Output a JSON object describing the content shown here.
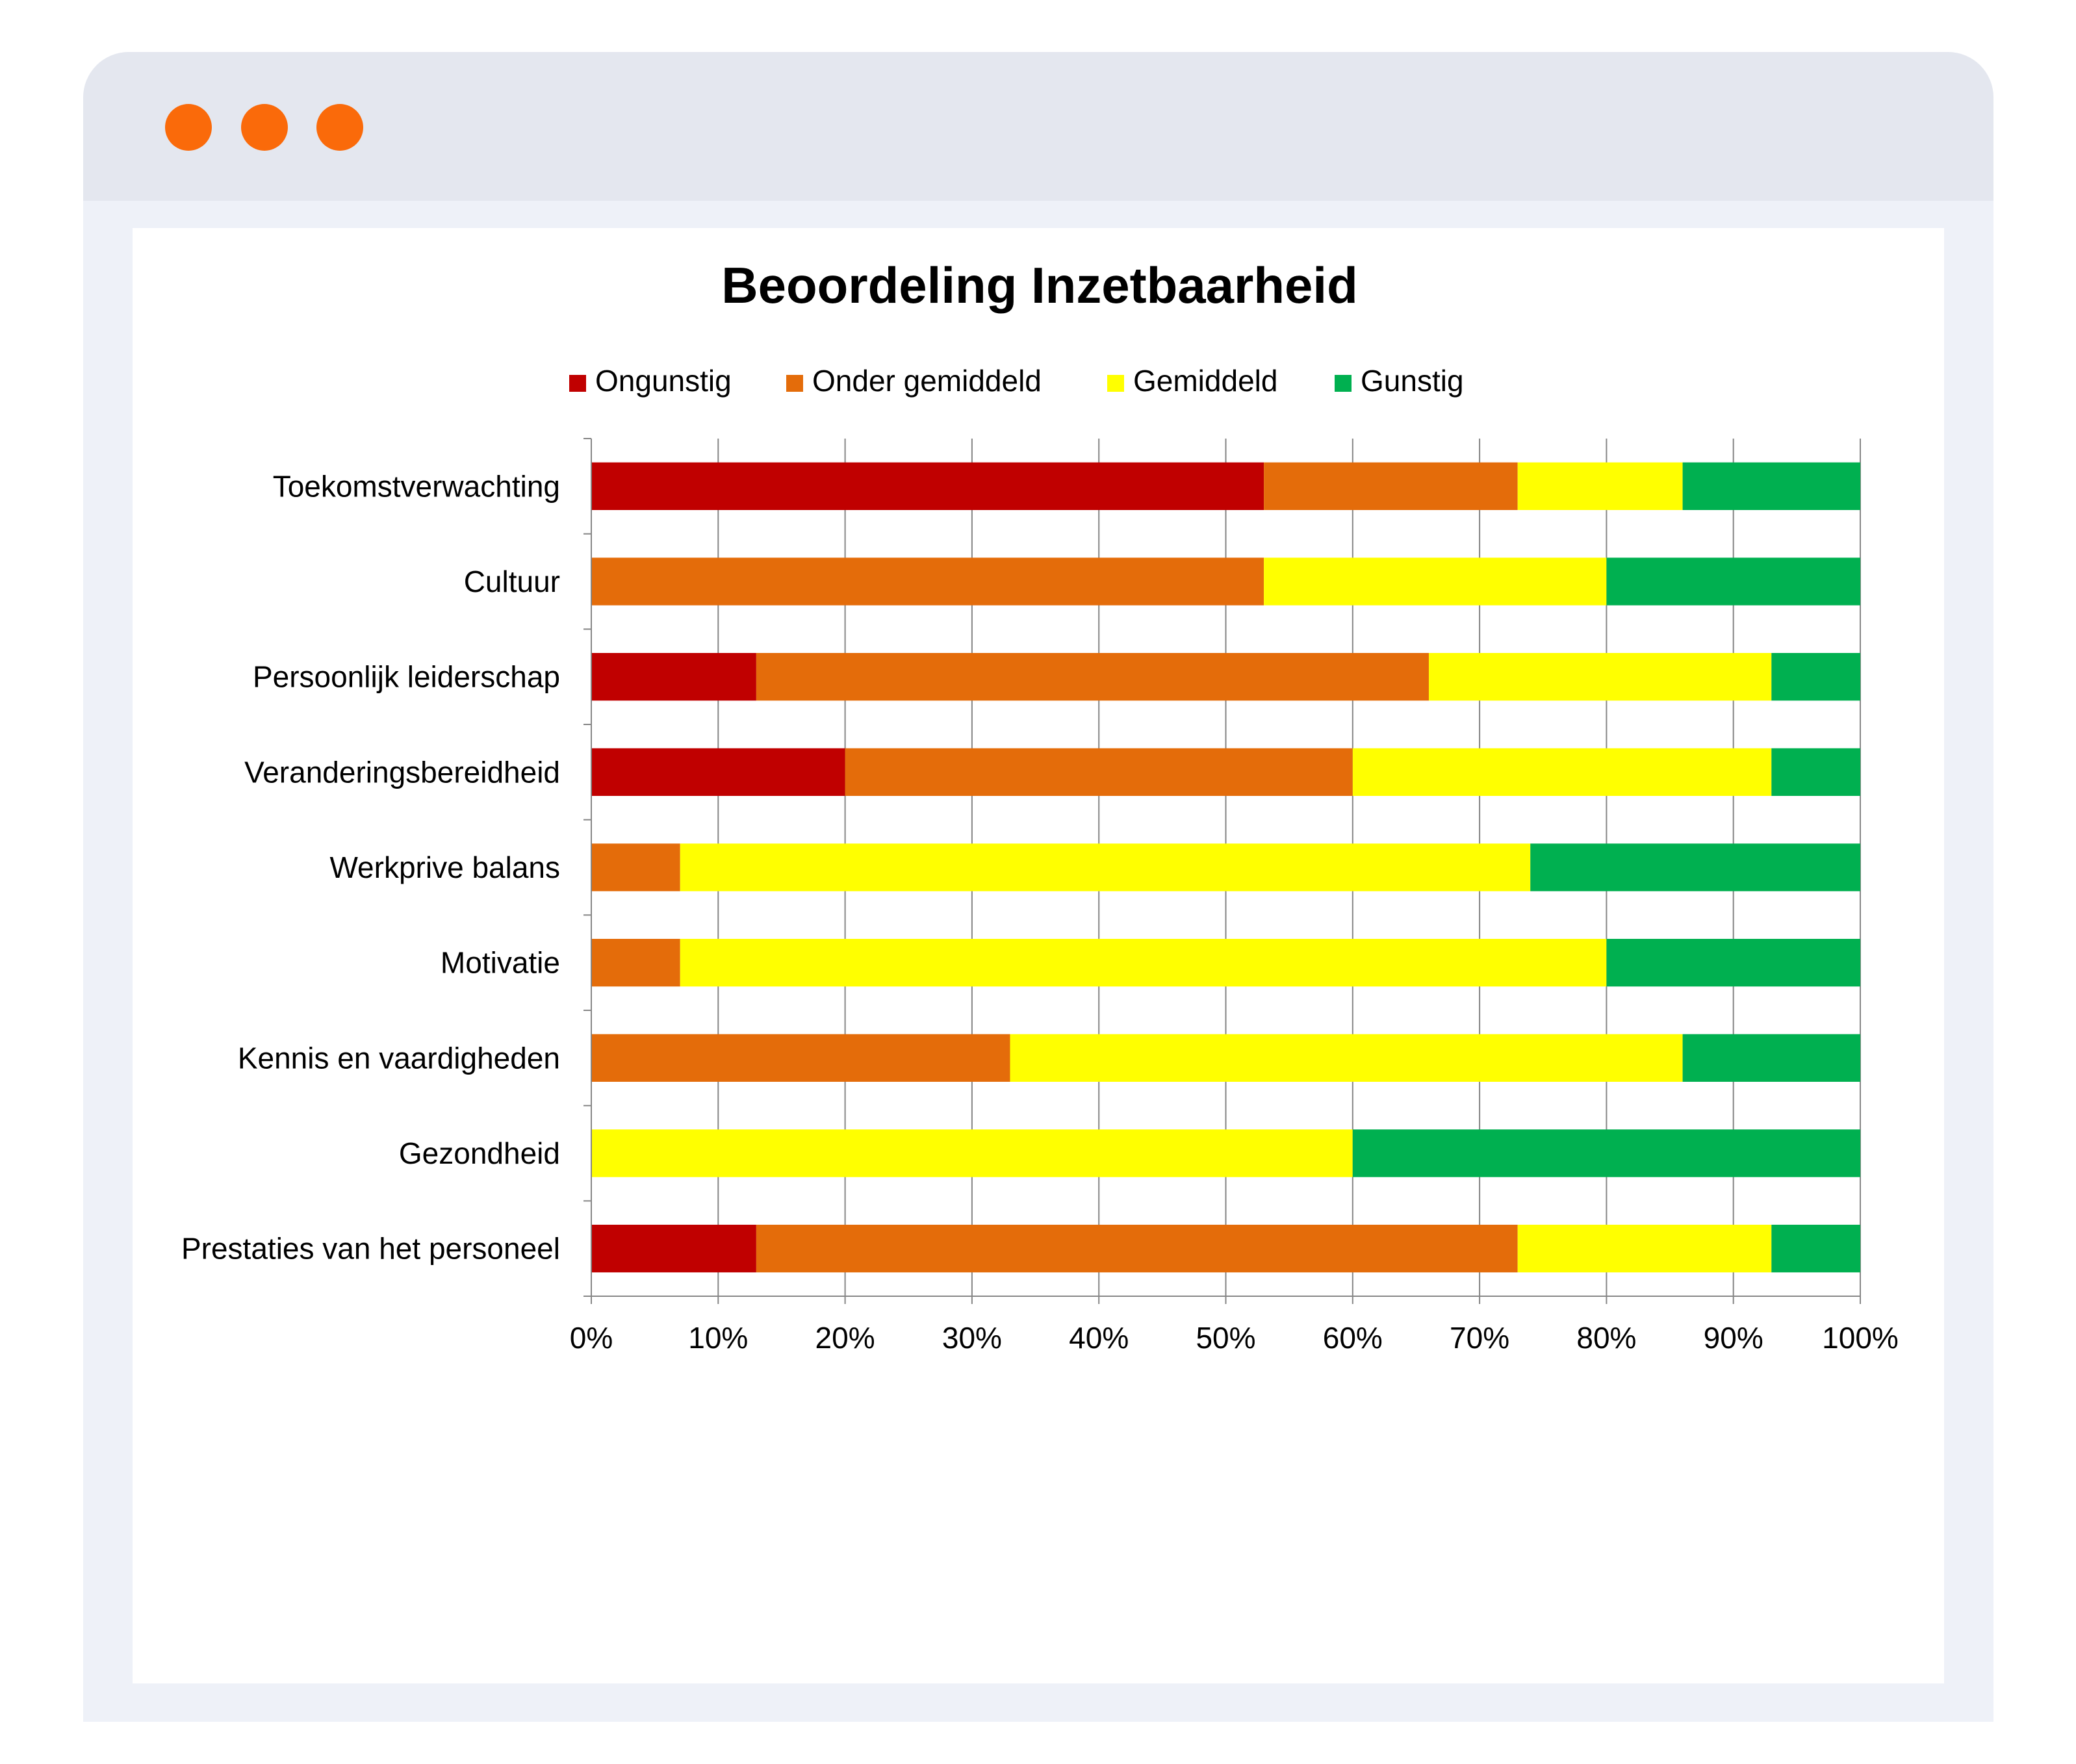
{
  "window": {
    "dot_color": "#fa6a0a",
    "controls": [
      "window-dot-icon",
      "window-dot-icon",
      "window-dot-icon"
    ]
  },
  "chart_data": {
    "type": "bar",
    "orientation": "horizontal",
    "stacked": true,
    "title": "Beoordeling Inzetbaarheid",
    "xlabel": "",
    "ylabel": "",
    "xlim": [
      0,
      100
    ],
    "x_ticks": [
      "0%",
      "10%",
      "20%",
      "30%",
      "40%",
      "50%",
      "60%",
      "70%",
      "80%",
      "90%",
      "100%"
    ],
    "grid": "vertical",
    "legend_position": "top",
    "categories": [
      "Toekomstverwachting",
      "Cultuur",
      "Persoonlijk leiderschap",
      "Veranderingsbereidheid",
      "Werkprive balans",
      "Motivatie",
      "Kennis en vaardigheden",
      "Gezondheid",
      "Prestaties van het personeel"
    ],
    "series": [
      {
        "name": "Ongunstig",
        "color": "#c00000",
        "values": [
          53,
          0,
          13,
          20,
          0,
          0,
          0,
          0,
          13
        ]
      },
      {
        "name": "Onder gemiddeld",
        "color": "#e46c0a",
        "values": [
          20,
          53,
          53,
          40,
          7,
          7,
          33,
          0,
          60
        ]
      },
      {
        "name": "Gemiddeld",
        "color": "#ffff00",
        "values": [
          13,
          27,
          27,
          33,
          67,
          73,
          53,
          60,
          20
        ]
      },
      {
        "name": "Gunstig",
        "color": "#00b050",
        "values": [
          14,
          20,
          7,
          7,
          26,
          20,
          14,
          40,
          7
        ]
      }
    ]
  }
}
